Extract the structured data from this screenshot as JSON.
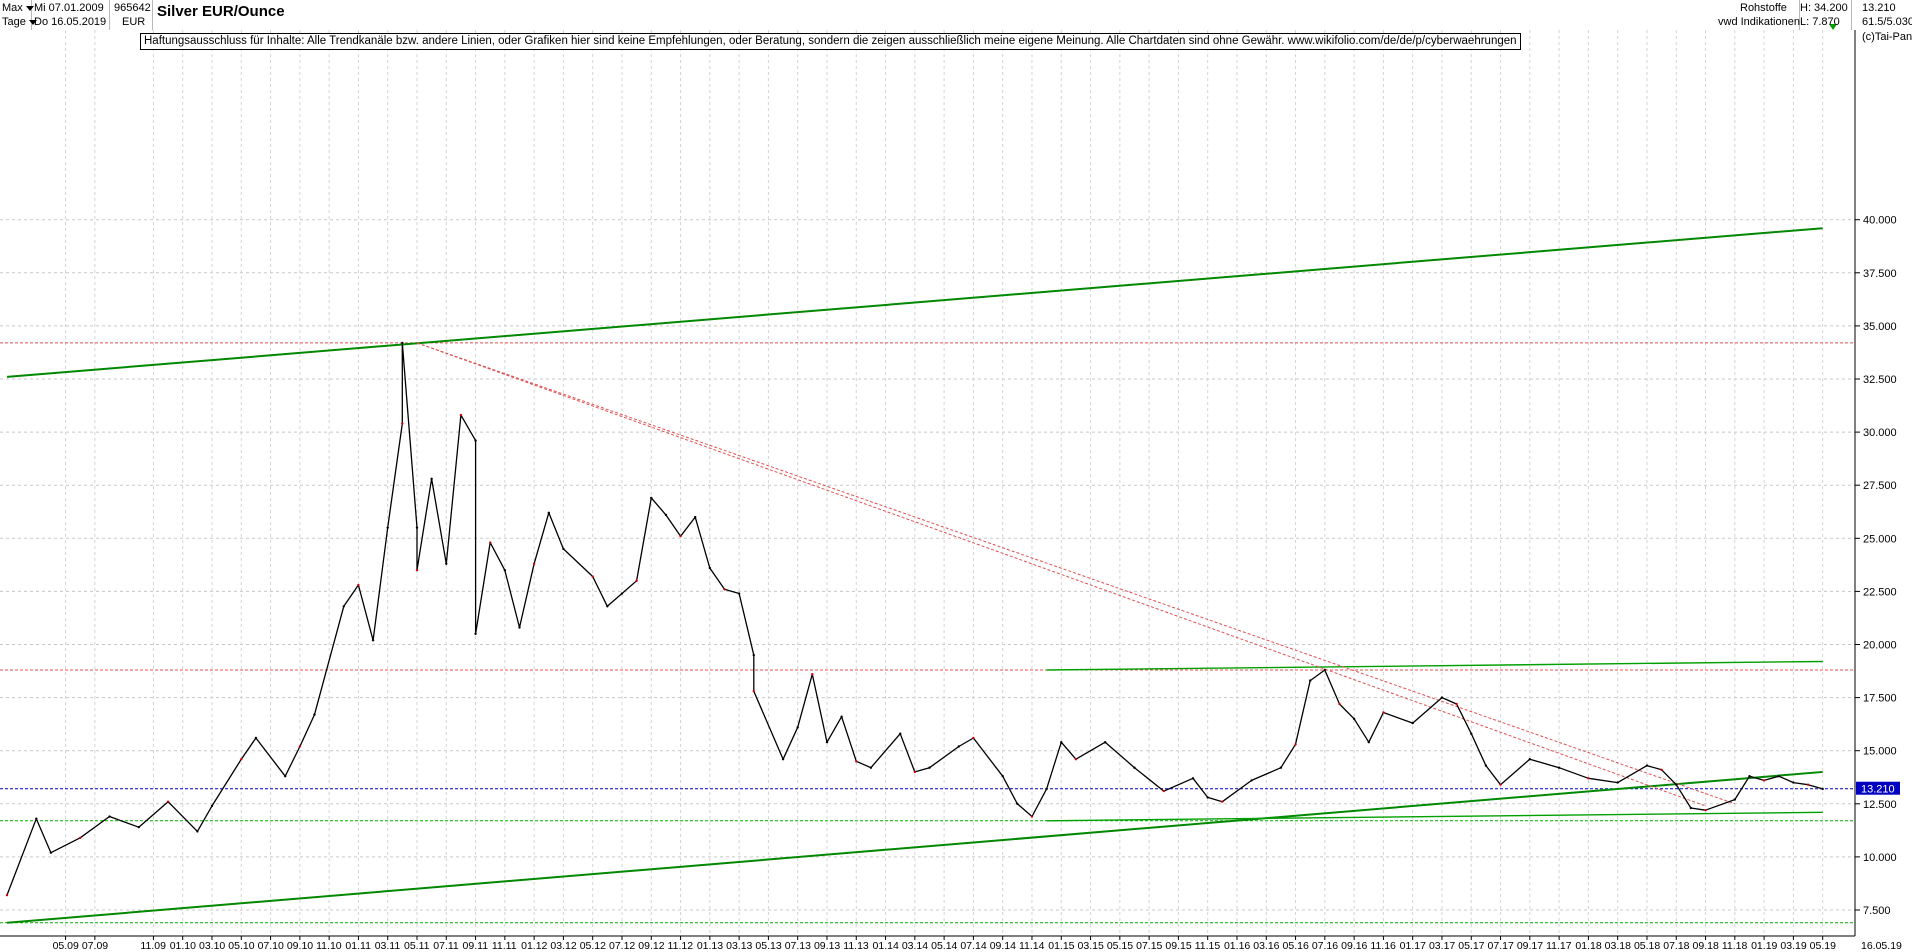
{
  "header": {
    "range_label": "Max",
    "period_label": "Tage",
    "start_date": "Mi 07.01.2009",
    "end_date": "Do 16.05.2019",
    "symbol_id": "965642",
    "currency": "EUR",
    "instrument_title": "Silver EUR/Ounce",
    "category": "Rohstoffe",
    "source": "vwd Indikationen",
    "high": "H: 34.200",
    "low": "L: 7.870",
    "last": "13.210",
    "ratio": "61.5/5.030",
    "copyright": "(c)Tai-Pan"
  },
  "disclaimer": "Haftungsausschluss für Inhalte: Alle Trendkanäle bzw. andere Linien, oder Grafiken hier sind keine Empfehlungen, oder Beratung, sondern die zeigen ausschließlich meine eigene Meinung. Alle Chartdaten sind ohne Gewähr.  www.wikifolio.com/de/de/p/cyberwaehrungen",
  "chart_data": {
    "type": "line",
    "title": "Silver EUR/Ounce",
    "xlabel": "",
    "ylabel": "",
    "ylim": [
      6.5,
      41
    ],
    "yticks": [
      "7.500",
      "10.000",
      "12.500",
      "15.000",
      "17.500",
      "20.000",
      "22.500",
      "25.000",
      "27.500",
      "30.000",
      "32.500",
      "35.000",
      "37.500",
      "40.000"
    ],
    "current_value_label": "13.210",
    "last_date_label": "16.05.19",
    "x_tick_labels": [
      "05.09",
      "07.09",
      "11.09",
      "01.10",
      "03.10",
      "05.10",
      "07.10",
      "09.10",
      "11.10",
      "01.11",
      "03.11",
      "05.11",
      "07.11",
      "09.11",
      "11.11",
      "01.12",
      "03.12",
      "05.12",
      "07.12",
      "09.12",
      "11.12",
      "01.13",
      "03.13",
      "05.13",
      "07.13",
      "09.13",
      "11.13",
      "01.14",
      "03.14",
      "05.14",
      "07.14",
      "09.14",
      "11.14",
      "01.15",
      "03.15",
      "05.15",
      "07.15",
      "09.15",
      "11.15",
      "01.16",
      "03.16",
      "05.16",
      "07.16",
      "09.16",
      "11.16",
      "01.17",
      "03.17",
      "05.17",
      "07.17",
      "09.17",
      "11.17",
      "01.18",
      "03.18",
      "05.18",
      "07.18",
      "09.18",
      "11.18",
      "01.19",
      "03.19",
      "05.19"
    ],
    "series": [
      {
        "color": "#000000",
        "x": [
          "01.2009",
          "03.2009",
          "04.2009",
          "06.2009",
          "08.2009",
          "10.2009",
          "12.2009",
          "02.2010",
          "03.2010",
          "05.2010",
          "06.2010",
          "08.2010",
          "09.2010",
          "10.2010",
          "12.2010",
          "01.2011",
          "02.2011",
          "03.2011",
          "04.2011",
          "04.2011",
          "05.2011",
          "05.2011",
          "06.2011",
          "07.2011",
          "08.2011",
          "09.2011",
          "09.2011",
          "10.2011",
          "11.2011",
          "12.2011",
          "01.2012",
          "02.2012",
          "03.2012",
          "05.2012",
          "06.2012",
          "07.2012",
          "08.2012",
          "09.2012",
          "10.2012",
          "11.2012",
          "12.2012",
          "01.2013",
          "02.2013",
          "03.2013",
          "04.2013",
          "04.2013",
          "06.2013",
          "07.2013",
          "08.2013",
          "09.2013",
          "10.2013",
          "11.2013",
          "12.2013",
          "02.2014",
          "03.2014",
          "04.2014",
          "06.2014",
          "07.2014",
          "09.2014",
          "10.2014",
          "11.2014",
          "12.2014",
          "01.2015",
          "02.2015",
          "04.2015",
          "06.2015",
          "08.2015",
          "10.2015",
          "11.2015",
          "12.2015",
          "02.2016",
          "04.2016",
          "05.2016",
          "06.2016",
          "07.2016",
          "08.2016",
          "09.2016",
          "10.2016",
          "11.2016",
          "01.2017",
          "03.2017",
          "04.2017",
          "05.2017",
          "06.2017",
          "07.2017",
          "09.2017",
          "11.2017",
          "01.2018",
          "03.2018",
          "05.2018",
          "06.2018",
          "07.2018",
          "08.2018",
          "09.2018",
          "11.2018",
          "12.2018",
          "01.2019",
          "02.2019",
          "03.2019",
          "04.2019",
          "05.2019"
        ],
        "y": [
          8.2,
          11.8,
          10.2,
          10.9,
          11.9,
          11.4,
          12.6,
          11.2,
          12.4,
          14.6,
          15.6,
          13.8,
          15.2,
          16.7,
          21.8,
          22.8,
          20.2,
          25.5,
          30.4,
          34.2,
          25.5,
          23.5,
          27.8,
          23.8,
          30.8,
          29.6,
          20.5,
          24.8,
          23.5,
          20.8,
          23.8,
          26.2,
          24.5,
          23.2,
          21.8,
          22.4,
          23.0,
          26.9,
          26.1,
          25.1,
          26.0,
          23.6,
          22.6,
          22.4,
          19.5,
          17.8,
          14.6,
          16.1,
          18.6,
          15.4,
          16.6,
          14.5,
          14.2,
          15.8,
          14.0,
          14.2,
          15.2,
          15.6,
          13.8,
          12.5,
          11.9,
          13.2,
          15.4,
          14.6,
          15.4,
          14.2,
          13.1,
          13.7,
          12.8,
          12.6,
          13.6,
          14.2,
          15.3,
          18.3,
          18.8,
          17.2,
          16.5,
          15.4,
          16.8,
          16.3,
          17.5,
          17.2,
          15.8,
          14.3,
          13.4,
          14.6,
          14.2,
          13.7,
          13.5,
          14.3,
          14.1,
          13.4,
          12.3,
          12.2,
          12.7,
          13.8,
          13.6,
          13.8,
          13.5,
          13.4,
          13.2
        ]
      }
    ],
    "horizontal_lines": [
      {
        "value": 34.2,
        "color": "#e05050",
        "style": "dotted"
      },
      {
        "value": 18.8,
        "color": "#e05050",
        "style": "dotted"
      },
      {
        "value": 13.21,
        "color": "#0000c0",
        "style": "dotted"
      },
      {
        "value": 11.7,
        "color": "#00b000",
        "style": "dotted"
      },
      {
        "value": 6.9,
        "color": "#00b000",
        "style": "dotted"
      }
    ],
    "trend_lines": [
      {
        "from": [
          "01.2009",
          32.6
        ],
        "to": [
          "05.2019",
          39.6
        ],
        "color": "#008800"
      },
      {
        "from": [
          "01.2009",
          6.9
        ],
        "to": [
          "05.2019",
          14.0
        ],
        "color": "#008800"
      },
      {
        "from": [
          "12.2014",
          18.8
        ],
        "to": [
          "05.2019",
          19.2
        ],
        "color": "#00a000"
      },
      {
        "from": [
          "12.2014",
          11.7
        ],
        "to": [
          "05.2019",
          12.1
        ],
        "color": "#00a000"
      },
      {
        "from": [
          "05.2011",
          34.2
        ],
        "to": [
          "11.2018",
          12.5
        ],
        "color": "#e05050"
      },
      {
        "from": [
          "05.2011",
          34.2
        ],
        "to": [
          "09.2018",
          12.4
        ],
        "color": "#e05050"
      }
    ]
  }
}
